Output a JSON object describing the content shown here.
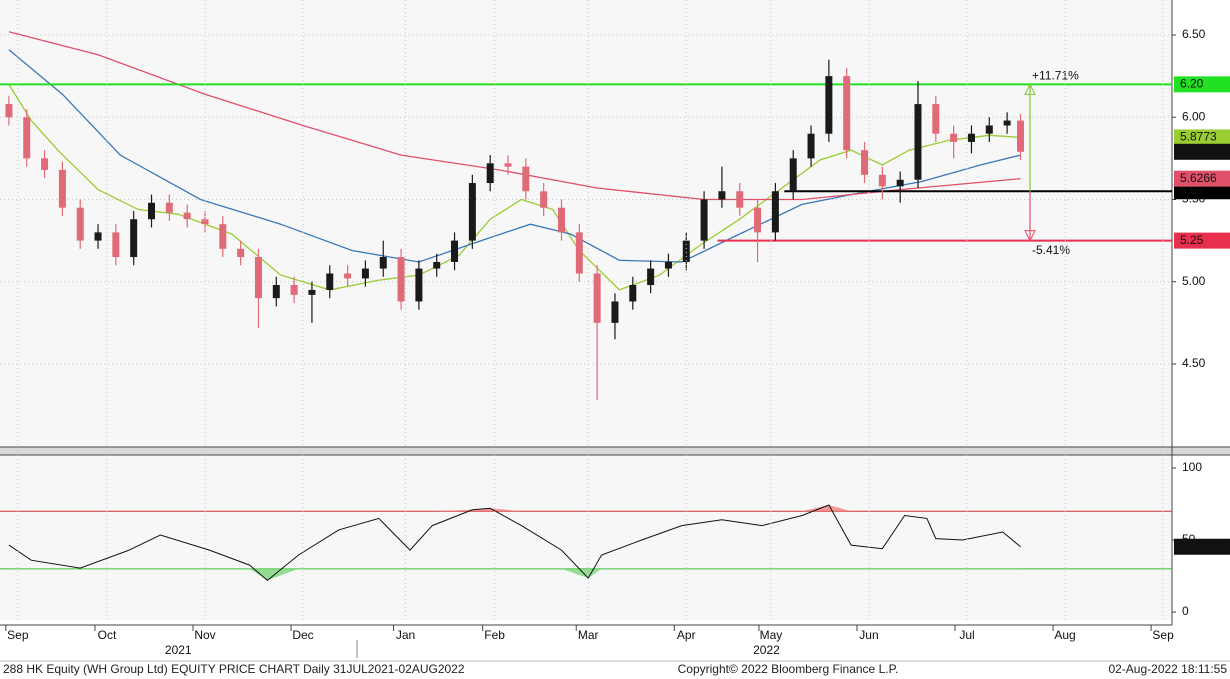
{
  "chart_data": [
    {
      "type": "candlestick",
      "xlim": [
        -2,
        261
      ],
      "ylim": [
        3.995,
        6.713
      ],
      "yticks": [
        {
          "value": 4.5,
          "label": "4.50"
        },
        {
          "value": 5,
          "label": "5.00"
        },
        {
          "value": 5.5,
          "label": "5.50"
        },
        {
          "value": 6,
          "label": "6.00"
        },
        {
          "value": 6.5,
          "label": "6.50"
        }
      ],
      "grid": true,
      "up_color": "#1a1a1a",
      "down_color": "#e06a78",
      "x": [
        0,
        4,
        8,
        12,
        16,
        20,
        24,
        28,
        32,
        36,
        40,
        44,
        48,
        52,
        56,
        60,
        64,
        68,
        72,
        76,
        80,
        84,
        88,
        92,
        96,
        100,
        104,
        108,
        112,
        116,
        120,
        124,
        128,
        132,
        136,
        140,
        144,
        148,
        152,
        156,
        160,
        164,
        168,
        172,
        176,
        180,
        184,
        188,
        192,
        196,
        200,
        204,
        208,
        212,
        216,
        220,
        224,
        227
      ],
      "open": [
        6.08,
        6.0,
        5.75,
        5.68,
        5.45,
        5.25,
        5.3,
        5.15,
        5.38,
        5.48,
        5.42,
        5.38,
        5.35,
        5.2,
        5.15,
        4.9,
        4.98,
        4.92,
        4.95,
        5.05,
        5.02,
        5.08,
        5.15,
        4.88,
        5.08,
        5.12,
        5.25,
        5.6,
        5.72,
        5.7,
        5.55,
        5.45,
        5.3,
        5.05,
        4.75,
        4.88,
        4.98,
        5.08,
        5.12,
        5.25,
        5.5,
        5.55,
        5.45,
        5.3,
        5.55,
        5.75,
        5.9,
        6.25,
        5.8,
        5.65,
        5.58,
        5.62,
        6.08,
        5.9,
        5.85,
        5.9,
        5.95,
        5.98
      ],
      "high": [
        6.13,
        6.05,
        5.8,
        5.73,
        5.5,
        5.35,
        5.35,
        5.43,
        5.53,
        5.53,
        5.47,
        5.43,
        5.4,
        5.25,
        5.2,
        5.03,
        5.03,
        5.0,
        5.1,
        5.1,
        5.13,
        5.25,
        5.2,
        5.13,
        5.17,
        5.3,
        5.65,
        5.77,
        5.77,
        5.75,
        5.6,
        5.5,
        5.35,
        5.1,
        4.93,
        5.03,
        5.13,
        5.17,
        5.3,
        5.55,
        5.7,
        5.6,
        5.5,
        5.6,
        5.8,
        5.95,
        6.35,
        6.3,
        5.85,
        5.7,
        5.67,
        6.22,
        6.13,
        5.95,
        5.95,
        6.0,
        6.03,
        6.02
      ],
      "low": [
        5.95,
        5.7,
        5.63,
        5.4,
        5.2,
        5.2,
        5.1,
        5.1,
        5.33,
        5.37,
        5.33,
        5.3,
        5.15,
        5.1,
        4.72,
        4.85,
        4.87,
        4.75,
        4.9,
        4.97,
        4.97,
        5.03,
        4.83,
        4.83,
        5.03,
        5.07,
        5.2,
        5.55,
        5.65,
        5.5,
        5.4,
        5.25,
        5.0,
        4.28,
        4.65,
        4.83,
        4.93,
        5.03,
        5.07,
        5.2,
        5.45,
        5.4,
        5.12,
        5.25,
        5.5,
        5.7,
        5.85,
        5.75,
        5.6,
        5.5,
        5.48,
        5.57,
        5.85,
        5.75,
        5.78,
        5.85,
        5.9,
        5.74
      ],
      "close": [
        6.0,
        5.75,
        5.68,
        5.45,
        5.25,
        5.3,
        5.15,
        5.38,
        5.48,
        5.42,
        5.38,
        5.35,
        5.2,
        5.15,
        4.9,
        4.98,
        4.92,
        4.95,
        5.05,
        5.02,
        5.08,
        5.15,
        4.88,
        5.08,
        5.12,
        5.25,
        5.6,
        5.72,
        5.7,
        5.55,
        5.45,
        5.3,
        5.05,
        4.75,
        4.88,
        4.98,
        5.08,
        5.12,
        5.25,
        5.5,
        5.55,
        5.45,
        5.3,
        5.55,
        5.75,
        5.9,
        6.25,
        5.8,
        5.65,
        5.58,
        5.62,
        6.08,
        5.9,
        5.85,
        5.9,
        5.95,
        5.98,
        5.79
      ],
      "lines": [
        {
          "color": "#9acd32",
          "last_label": true,
          "x": [
            0,
            5,
            11,
            20,
            29,
            38,
            50,
            61,
            72,
            83,
            92,
            101,
            108,
            115,
            122,
            128,
            137,
            146,
            155,
            164,
            173,
            182,
            189,
            196,
            202,
            211,
            220,
            227
          ],
          "values": [
            6.2,
            5.98,
            5.8,
            5.56,
            5.44,
            5.41,
            5.29,
            5.04,
            4.95,
            5.01,
            5.04,
            5.16,
            5.38,
            5.5,
            5.44,
            5.19,
            4.95,
            5.04,
            5.22,
            5.38,
            5.56,
            5.74,
            5.8,
            5.71,
            5.8,
            5.86,
            5.89,
            5.8773
          ]
        },
        {
          "color": "#3a78b8",
          "last_label": false,
          "x": [
            0,
            12,
            25,
            43,
            61,
            77,
            92,
            106,
            117,
            126,
            137,
            151,
            164,
            178,
            191,
            205,
            218,
            227
          ],
          "values": [
            6.41,
            6.14,
            5.77,
            5.5,
            5.35,
            5.19,
            5.12,
            5.25,
            5.35,
            5.29,
            5.13,
            5.12,
            5.29,
            5.47,
            5.54,
            5.61,
            5.71,
            5.77
          ]
        },
        {
          "color": "#e0506a",
          "last_label": true,
          "x": [
            0,
            20,
            44,
            66,
            88,
            110,
            132,
            156,
            178,
            200,
            227
          ],
          "values": [
            6.52,
            6.38,
            6.14,
            5.95,
            5.77,
            5.68,
            5.57,
            5.5,
            5.5,
            5.56,
            5.6266
          ]
        }
      ],
      "levels": [
        {
          "value": 6.2,
          "label": "6.20",
          "color": "#22e022"
        },
        {
          "value": 5.55,
          "color": "#000000",
          "x_start": 174
        },
        {
          "value": 5.25,
          "color": "#e8304e",
          "x_start": 159
        }
      ],
      "annotations": [
        {
          "text": "+11.71%",
          "color": "#7ccc30"
        },
        {
          "text": "-5.41%",
          "color": "#e8506a"
        }
      ]
    },
    {
      "type": "line",
      "xlim": [
        -2,
        261
      ],
      "ylim": [
        -5.5,
        109
      ],
      "yticks": [
        0,
        50,
        100
      ],
      "color": "#111111",
      "upper": 70,
      "lower": 30,
      "x": [
        0,
        5,
        16,
        27,
        34,
        45,
        54,
        58,
        65,
        74,
        83,
        90,
        95,
        104,
        108,
        115,
        124,
        130,
        133,
        142,
        151,
        160,
        169,
        178,
        184,
        189,
        196,
        201,
        206,
        208,
        214,
        223,
        227
      ],
      "values": [
        46.5,
        36,
        30.5,
        43,
        53.5,
        43,
        32.6,
        22,
        39.6,
        57,
        65,
        43,
        60,
        71,
        72,
        60,
        43,
        23.6,
        39.6,
        50,
        60,
        64,
        60,
        67,
        74.3,
        46.5,
        44,
        67,
        65,
        51,
        50,
        55.6,
        45.3317
      ],
      "xticks": [
        {
          "value": 2,
          "label": "Sep"
        },
        {
          "value": 22,
          "label": "Oct"
        },
        {
          "value": 44,
          "label": "Nov"
        },
        {
          "value": 66,
          "label": "Dec"
        },
        {
          "value": 89,
          "label": "Jan"
        },
        {
          "value": 109,
          "label": "Feb"
        },
        {
          "value": 130,
          "label": "Mar"
        },
        {
          "value": 152,
          "label": "Apr"
        },
        {
          "value": 171,
          "label": "May"
        },
        {
          "value": 193,
          "label": "Jun"
        },
        {
          "value": 215,
          "label": "Jul"
        },
        {
          "value": 237,
          "label": "Aug"
        },
        {
          "value": 259,
          "label": "Sep"
        }
      ],
      "year_labels": [
        {
          "value": 38,
          "label": "2021"
        },
        {
          "value": 170,
          "label": "2022"
        }
      ]
    }
  ],
  "footer": {
    "left": "288 HK Equity (WH Group Ltd) EQUITY PRICE CHART  Daily 31JUL2021-02AUG2022",
    "center": "Copyright© 2022 Bloomberg Finance L.P.",
    "right": "02-Aug-2022 18:11:55"
  }
}
